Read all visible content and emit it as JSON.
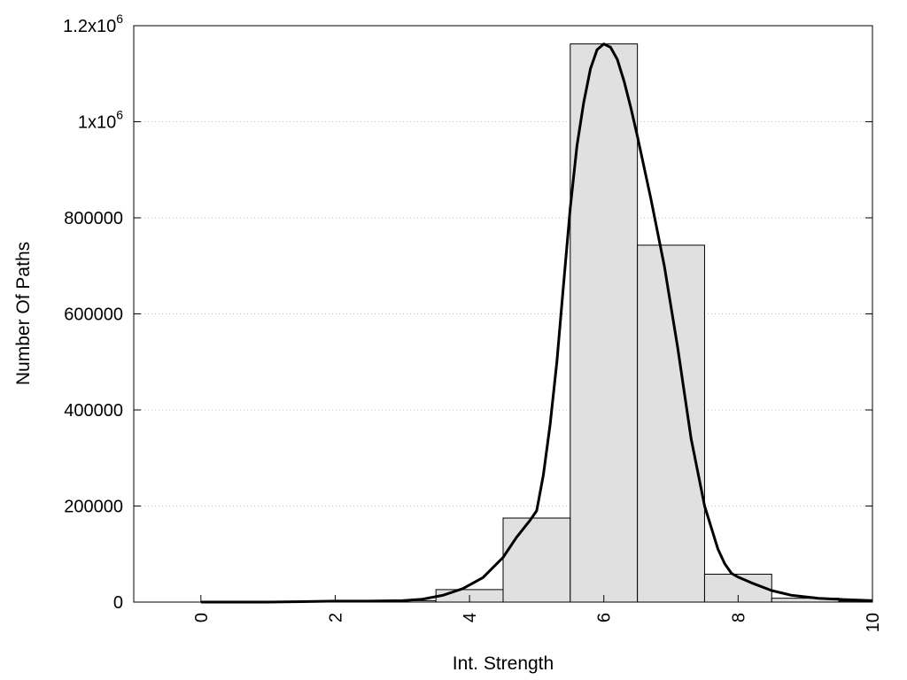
{
  "chart_data": {
    "type": "bar",
    "title": "",
    "xlabel": "Int. Strength",
    "ylabel": "Number Of Paths",
    "xlim": [
      -1,
      10
    ],
    "ylim": [
      0,
      1200000
    ],
    "x_ticks": [
      {
        "value": 0,
        "label": "0"
      },
      {
        "value": 2,
        "label": "2"
      },
      {
        "value": 4,
        "label": "4"
      },
      {
        "value": 6,
        "label": "6"
      },
      {
        "value": 8,
        "label": "8"
      },
      {
        "value": 10,
        "label": "10"
      }
    ],
    "y_ticks": [
      {
        "value": 0,
        "label": "0",
        "exp": ""
      },
      {
        "value": 200000,
        "label": "200000",
        "exp": ""
      },
      {
        "value": 400000,
        "label": "400000",
        "exp": ""
      },
      {
        "value": 600000,
        "label": "600000",
        "exp": ""
      },
      {
        "value": 800000,
        "label": "800000",
        "exp": ""
      },
      {
        "value": 1000000,
        "label": "1x10",
        "exp": "6"
      },
      {
        "value": 1200000,
        "label": "1.2x10",
        "exp": "6"
      }
    ],
    "grid": "horizontal-dotted",
    "bars": {
      "x": [
        0,
        1,
        2,
        3,
        4,
        5,
        6,
        7,
        8,
        9,
        10
      ],
      "values": [
        0,
        0,
        1000,
        3000,
        26000,
        175000,
        1162000,
        743000,
        58000,
        8000,
        2000
      ],
      "width": 1,
      "color": "#e0e0e0"
    },
    "fit_curve": {
      "x": [
        0,
        0.5,
        1,
        1.5,
        2,
        2.5,
        3,
        3.3,
        3.6,
        3.9,
        4.2,
        4.5,
        4.7,
        4.9,
        5.0,
        5.1,
        5.2,
        5.3,
        5.4,
        5.5,
        5.6,
        5.7,
        5.8,
        5.9,
        6.0,
        6.1,
        6.2,
        6.3,
        6.4,
        6.5,
        6.7,
        6.9,
        7.1,
        7.3,
        7.5,
        7.7,
        7.8,
        7.9,
        8.0,
        8.2,
        8.5,
        8.8,
        9.2,
        9.6,
        10
      ],
      "values": [
        0,
        0,
        0,
        1000,
        2000,
        2000,
        3000,
        6000,
        14000,
        28000,
        51000,
        93000,
        135000,
        170000,
        190000,
        265000,
        370000,
        500000,
        660000,
        820000,
        950000,
        1040000,
        1110000,
        1150000,
        1162000,
        1155000,
        1130000,
        1085000,
        1030000,
        970000,
        840000,
        700000,
        530000,
        340000,
        200000,
        110000,
        80000,
        60000,
        52000,
        40000,
        24000,
        14000,
        8000,
        5000,
        3000
      ],
      "color": "#000000"
    }
  }
}
